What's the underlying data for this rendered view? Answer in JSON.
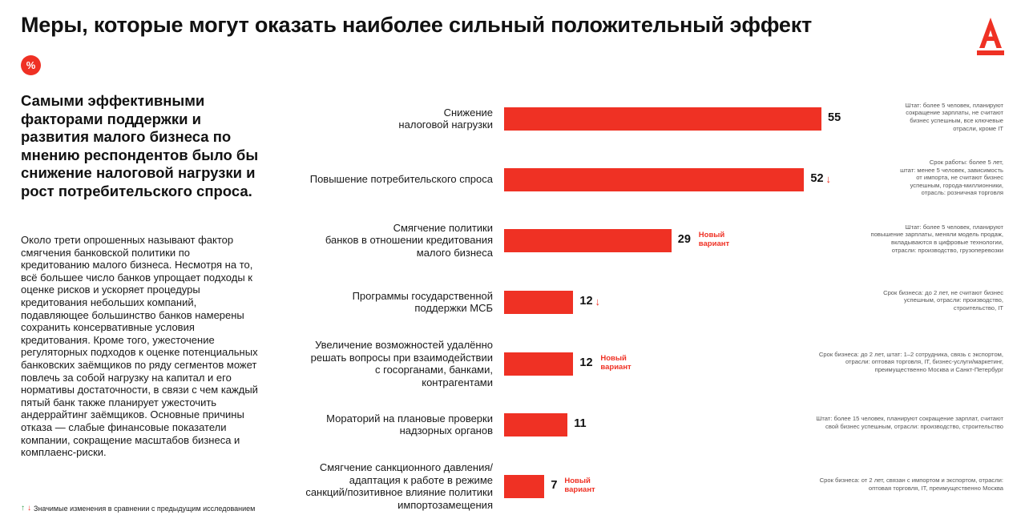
{
  "header": {
    "title": "Меры, которые могут оказать наиболее сильный положительный эффект",
    "badge": "%",
    "logo_icon": "alfa-bank-logo-icon"
  },
  "intro": {
    "headline": "Самыми эффективными факторами поддержки и развития малого бизнеса по мнению респондентов было бы снижение налоговой нагрузки и рост потребительского спроса.",
    "body": "Около трети опрошенных называют фактор смягчения банковской политики по кредитованию малого бизнеса. Несмотря на то, всё большее число банков упрощает подходы к оценке рисков и ускоряет процедуры кредитования небольших компаний, подавляющее большинство банков намерены сохранить консервативные условия кредитования. Кроме того, ужесточение регуляторных подходов к оценке потенциальных банковских заёмщиков по ряду сегментов может повлечь за собой нагрузку на капитал и его нормативы достаточности, в связи с чем каждый пятый банк также планирует ужесточить андеррайтинг заёмщиков. Основные причины отказа — слабые финансовые показатели компании, сокращение масштабов бизнеса и комплаенс-риски.",
    "legend_note": "Значимые изменения в сравнении с предыдущим исследованием",
    "legend_up": "↑",
    "legend_down": "↓"
  },
  "colors": {
    "accent": "#ef3124",
    "up": "#2e9e4a"
  },
  "chart_data": {
    "type": "bar",
    "orientation": "horizontal",
    "xlim": [
      0,
      55
    ],
    "categories": [
      "Снижение налоговой нагрузки",
      "Повышение потребительского спроса",
      "Смягчение политики банков в отношении кредитования малого бизнеса",
      "Программы государственной поддержки МСБ",
      "Увеличение возможностей удалённо решать вопросы при взаимодействии с госорганами, банками, контрагентами",
      "Мораторий на плановые проверки надзорных органов",
      "Смягчение санкционного давления/ адаптация к работе в режиме санкций/позитивное влияние политики импортозамещения"
    ],
    "values": [
      55,
      52,
      29,
      12,
      12,
      11,
      7
    ],
    "rows": [
      {
        "label_lines": [
          "Снижение",
          "налоговой нагрузки"
        ],
        "value": 55,
        "value_text": "55",
        "change": "",
        "new_variant": [],
        "note_lines": [
          "Штат: более 5 человек, планируют",
          "сокращение зарплаты, не считают",
          "бизнес успешным, все ключевые",
          "отрасли, кроме IT"
        ]
      },
      {
        "label_lines": [
          "Повышение потребительского спроса"
        ],
        "value": 52,
        "value_text": "52",
        "change": "↓",
        "new_variant": [],
        "note_lines": [
          "Срок работы: более 5 лет,",
          "штат: менее 5 человек, зависимость",
          "от импорта, не считают бизнес",
          "успешным, города-миллионники,",
          "отрасль: розничная торговля"
        ]
      },
      {
        "label_lines": [
          "Смягчение политики",
          "банков в отношении кредитования",
          "малого бизнеса"
        ],
        "value": 29,
        "value_text": "29",
        "change": "",
        "new_variant": [
          "Новый",
          "вариант"
        ],
        "note_lines": [
          "Штат: более 5 человек, планируют",
          "повышение зарплаты, меняли модель продаж,",
          "вкладываются в цифровые технологии,",
          "отрасли: производство, грузоперевозки"
        ]
      },
      {
        "label_lines": [
          "Программы государственной",
          "поддержки МСБ"
        ],
        "value": 12,
        "value_text": "12",
        "change": "↓",
        "new_variant": [],
        "note_lines": [
          "Срок бизнеса: до 2 лет, не считают бизнес",
          "успешным, отрасли: производство,",
          "строительство, IT"
        ]
      },
      {
        "label_lines": [
          "Увеличение возможностей удалённо",
          "решать вопросы при взаимодействии",
          "с госорганами, банками,",
          "контрагентами"
        ],
        "value": 12,
        "value_text": "12",
        "change": "",
        "new_variant": [
          "Новый",
          "вариант"
        ],
        "note_lines": [
          "Срок бизнеса: до 2 лет, штат: 1–2 сотрудника, связь с экспортом,",
          "отрасли: оптовая торговля, IT, бизнес-услуги/маркетинг,",
          "преимущественно Москва и Санкт-Петербург"
        ]
      },
      {
        "label_lines": [
          "Мораторий на плановые проверки",
          "надзорных органов"
        ],
        "value": 11,
        "value_text": "11",
        "change": "",
        "new_variant": [],
        "note_lines": [
          "Штат: более 15 человек, планируют сокращение зарплат, считают",
          "свой бизнес успешным, отрасли: производство, строительство"
        ]
      },
      {
        "label_lines": [
          "Смягчение санкционного давления/",
          "адаптация к работе в режиме",
          "санкций/позитивное влияние политики",
          "импортозамещения"
        ],
        "value": 7,
        "value_text": "7",
        "change": "",
        "new_variant": [
          "Новый",
          "вариант"
        ],
        "note_lines": [
          "Срок бизнеса: от 2 лет, связан с импортом и экспортом, отрасли:",
          "оптовая торговля, IT, преимущественно Москва"
        ]
      }
    ]
  }
}
